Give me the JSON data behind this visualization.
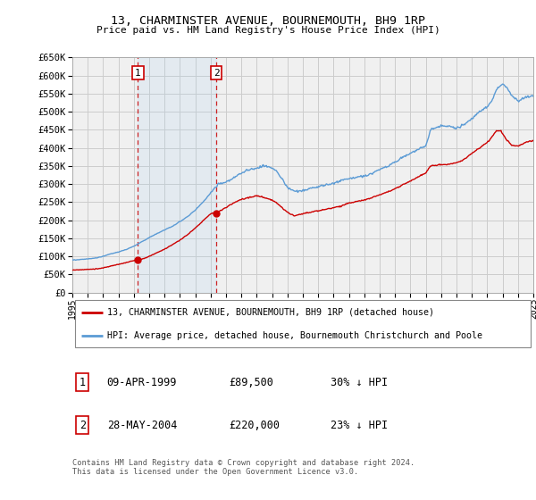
{
  "title": "13, CHARMINSTER AVENUE, BOURNEMOUTH, BH9 1RP",
  "subtitle": "Price paid vs. HM Land Registry's House Price Index (HPI)",
  "legend_line1": "13, CHARMINSTER AVENUE, BOURNEMOUTH, BH9 1RP (detached house)",
  "legend_line2": "HPI: Average price, detached house, Bournemouth Christchurch and Poole",
  "footer": "Contains HM Land Registry data © Crown copyright and database right 2024.\nThis data is licensed under the Open Government Licence v3.0.",
  "sale1_date": "09-APR-1999",
  "sale1_price": "£89,500",
  "sale1_hpi": "30% ↓ HPI",
  "sale1_year": 1999.27,
  "sale1_value": 89500,
  "sale2_date": "28-MAY-2004",
  "sale2_price": "£220,000",
  "sale2_hpi": "23% ↓ HPI",
  "sale2_year": 2004.38,
  "sale2_value": 220000,
  "hpi_color": "#5b9bd5",
  "price_color": "#cc0000",
  "vline_color": "#cc0000",
  "annotation_box_color": "#cc0000",
  "grid_color": "#cccccc",
  "background_color": "#ffffff",
  "plot_bg_color": "#f0f0f0",
  "ylim": [
    0,
    650000
  ],
  "ytick_step": 50000,
  "hpi_anchors_x": [
    1995.0,
    1995.5,
    1996.0,
    1996.5,
    1997.0,
    1997.5,
    1998.0,
    1998.5,
    1999.0,
    1999.5,
    2000.0,
    2000.5,
    2001.0,
    2001.5,
    2002.0,
    2002.5,
    2003.0,
    2003.5,
    2004.0,
    2004.5,
    2005.0,
    2005.5,
    2006.0,
    2006.5,
    2007.0,
    2007.5,
    2008.0,
    2008.3,
    2008.7,
    2009.0,
    2009.5,
    2010.0,
    2010.5,
    2011.0,
    2011.5,
    2012.0,
    2012.5,
    2013.0,
    2013.5,
    2014.0,
    2014.5,
    2015.0,
    2015.5,
    2016.0,
    2016.5,
    2017.0,
    2017.5,
    2018.0,
    2018.3,
    2018.6,
    2019.0,
    2019.5,
    2020.0,
    2020.5,
    2021.0,
    2021.5,
    2022.0,
    2022.3,
    2022.6,
    2022.9,
    2023.0,
    2023.3,
    2023.6,
    2024.0,
    2024.5,
    2025.0
  ],
  "hpi_anchors_y": [
    90000,
    91000,
    93000,
    95000,
    100000,
    107000,
    112000,
    119000,
    128000,
    140000,
    152000,
    163000,
    173000,
    183000,
    196000,
    210000,
    228000,
    250000,
    275000,
    300000,
    305000,
    318000,
    330000,
    340000,
    345000,
    350000,
    345000,
    335000,
    310000,
    290000,
    280000,
    282000,
    287000,
    292000,
    298000,
    302000,
    310000,
    315000,
    318000,
    322000,
    330000,
    340000,
    350000,
    360000,
    375000,
    385000,
    395000,
    405000,
    450000,
    455000,
    460000,
    460000,
    455000,
    465000,
    480000,
    500000,
    515000,
    530000,
    560000,
    575000,
    578000,
    565000,
    545000,
    530000,
    540000,
    545000
  ],
  "price_anchors_x": [
    1995.0,
    1995.5,
    1996.0,
    1996.5,
    1997.0,
    1997.5,
    1998.0,
    1998.5,
    1999.0,
    1999.27,
    1999.5,
    2000.0,
    2000.5,
    2001.0,
    2001.5,
    2002.0,
    2002.5,
    2003.0,
    2003.5,
    2004.0,
    2004.38,
    2004.5,
    2004.8,
    2005.0,
    2005.5,
    2006.0,
    2006.5,
    2007.0,
    2007.5,
    2008.0,
    2008.3,
    2008.7,
    2009.0,
    2009.3,
    2009.5,
    2010.0,
    2010.5,
    2011.0,
    2011.5,
    2012.0,
    2012.5,
    2013.0,
    2013.5,
    2014.0,
    2014.5,
    2015.0,
    2015.5,
    2016.0,
    2016.5,
    2017.0,
    2017.5,
    2018.0,
    2018.3,
    2018.6,
    2019.0,
    2019.5,
    2020.0,
    2020.5,
    2021.0,
    2021.5,
    2022.0,
    2022.3,
    2022.6,
    2022.9,
    2023.3,
    2023.6,
    2024.0,
    2024.5,
    2025.0
  ],
  "price_anchors_y": [
    62000,
    63000,
    64000,
    65000,
    68000,
    73000,
    78000,
    83000,
    88000,
    89500,
    92000,
    100000,
    110000,
    120000,
    132000,
    145000,
    160000,
    178000,
    198000,
    218000,
    220000,
    224000,
    230000,
    235000,
    248000,
    258000,
    263000,
    267000,
    262000,
    256000,
    248000,
    233000,
    222000,
    215000,
    213000,
    218000,
    222000,
    226000,
    230000,
    234000,
    240000,
    247000,
    252000,
    256000,
    262000,
    270000,
    278000,
    287000,
    298000,
    308000,
    320000,
    330000,
    350000,
    352000,
    353000,
    355000,
    358000,
    368000,
    385000,
    400000,
    415000,
    430000,
    447000,
    447000,
    420000,
    408000,
    405000,
    415000,
    420000
  ]
}
